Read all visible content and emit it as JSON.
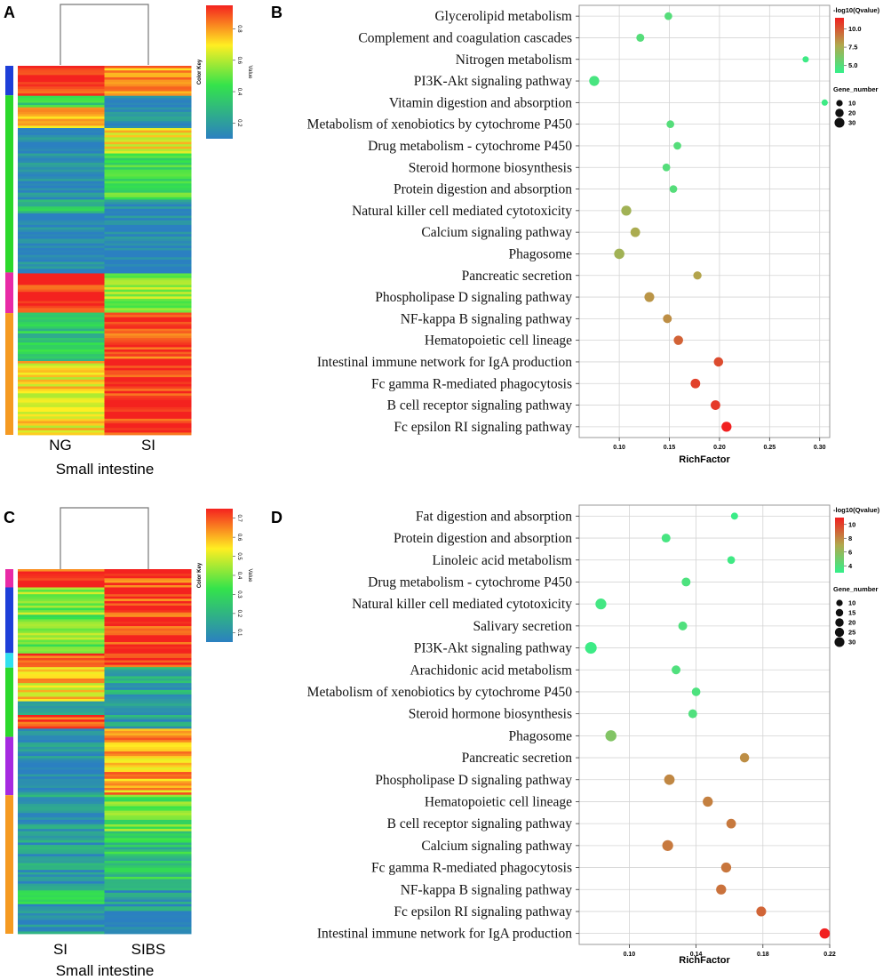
{
  "panel_labels": [
    "A",
    "B",
    "C",
    "D"
  ],
  "colors": {
    "heat_low": "#2b80c1",
    "heat_mid": "#34e34b",
    "heat_yellow": "#ffee22",
    "heat_high": "#f4221f",
    "cluster_blue": "#1e3fd8",
    "cluster_green": "#2bd82b",
    "cluster_magenta": "#e82aa6",
    "cluster_orange": "#f59a22",
    "cluster_cyan": "#31e0ef",
    "cluster_purple": "#a62ae0",
    "dot_low": "#34f08a",
    "dot_high": "#f12020"
  },
  "chart_data": [
    {
      "panel": "A",
      "type": "heatmap",
      "columns": [
        "NG",
        "SI"
      ],
      "xlabel": "Small intestine",
      "color_key": {
        "title": "Color Key",
        "axis_label": "Value",
        "ticks": [
          "0.2",
          "0.4",
          "0.6",
          "0.8"
        ],
        "range": [
          0.1,
          0.95
        ]
      },
      "row_clusters": [
        {
          "color": "cluster_blue",
          "fraction": 0.08
        },
        {
          "color": "cluster_green",
          "fraction": 0.48
        },
        {
          "color": "cluster_magenta",
          "fraction": 0.11
        },
        {
          "color": "cluster_orange",
          "fraction": 0.33
        }
      ],
      "profile": [
        {
          "from": 0.0,
          "to": 0.08,
          "values": [
            0.95,
            0.8
          ]
        },
        {
          "from": 0.08,
          "to": 0.11,
          "values": [
            0.4,
            0.15
          ]
        },
        {
          "from": 0.11,
          "to": 0.17,
          "values": [
            0.75,
            0.15
          ]
        },
        {
          "from": 0.17,
          "to": 0.24,
          "values": [
            0.12,
            0.7
          ]
        },
        {
          "from": 0.24,
          "to": 0.36,
          "values": [
            0.12,
            0.45
          ]
        },
        {
          "from": 0.36,
          "to": 0.4,
          "values": [
            0.35,
            0.12
          ]
        },
        {
          "from": 0.4,
          "to": 0.56,
          "values": [
            0.12,
            0.12
          ]
        },
        {
          "from": 0.56,
          "to": 0.67,
          "values": [
            0.95,
            0.55
          ]
        },
        {
          "from": 0.67,
          "to": 0.8,
          "values": [
            0.35,
            0.9
          ]
        },
        {
          "from": 0.8,
          "to": 1.0,
          "values": [
            0.7,
            0.95
          ]
        }
      ]
    },
    {
      "panel": "B",
      "type": "scatter",
      "xlabel": "RichFactor",
      "xlim": [
        0.06,
        0.31
      ],
      "xticks": [
        0.1,
        0.15,
        0.2,
        0.25,
        0.3
      ],
      "xtick_labels": [
        "0.10",
        "0.15",
        "0.20",
        "0.25",
        "0.30"
      ],
      "color_legend": {
        "title": "-log10(Qvalue)",
        "ticks": [
          5.0,
          7.5,
          10.0
        ],
        "tick_labels": [
          "5.0",
          "7.5",
          "10.0"
        ],
        "range": [
          4.0,
          11.5
        ]
      },
      "size_legend": {
        "title": "Gene_number",
        "values": [
          10,
          20,
          30
        ],
        "labels": [
          "10",
          "20",
          "30"
        ]
      },
      "pathways": [
        "Glycerolipid metabolism",
        "Complement and coagulation cascades",
        "Nitrogen metabolism",
        "PI3K-Akt signaling pathway",
        "Vitamin digestion and absorption",
        "Metabolism of xenobiotics by cytochrome P450",
        "Drug metabolism - cytochrome P450",
        "Steroid hormone biosynthesis",
        "Protein digestion and absorption",
        "Natural killer cell mediated cytotoxicity",
        "Calcium signaling pathway",
        "Phagosome",
        "Pancreatic secretion",
        "Phospholipase D signaling pathway",
        "NF-kappa B signaling pathway",
        "Hematopoietic cell lineage",
        "Intestinal immune network for IgA production",
        "Fc gamma R-mediated phagocytosis",
        "B cell receptor signaling pathway",
        "Fc epsilon RI signaling pathway"
      ],
      "richfactor": [
        0.149,
        0.121,
        0.286,
        0.075,
        0.305,
        0.151,
        0.158,
        0.147,
        0.154,
        0.107,
        0.116,
        0.1,
        0.178,
        0.13,
        0.148,
        0.159,
        0.199,
        0.176,
        0.196,
        0.207
      ],
      "qvalue": [
        5.0,
        5.0,
        4.3,
        4.6,
        4.3,
        5.0,
        5.0,
        5.0,
        5.0,
        7.3,
        7.6,
        7.3,
        7.9,
        8.3,
        8.5,
        9.7,
        10.3,
        10.6,
        10.8,
        11.5
      ],
      "gene_number": [
        9,
        10,
        5,
        18,
        5,
        9,
        9,
        9,
        9,
        18,
        16,
        19,
        11,
        17,
        13,
        15,
        15,
        16,
        16,
        18
      ]
    },
    {
      "panel": "C",
      "type": "heatmap",
      "columns": [
        "SI",
        "SIBS"
      ],
      "xlabel": "Small intestine",
      "color_key": {
        "title": "Color Key",
        "axis_label": "Value",
        "ticks": [
          "0.1",
          "0.2",
          "0.3",
          "0.4",
          "0.5",
          "0.6",
          "0.7"
        ],
        "range": [
          0.05,
          0.75
        ]
      },
      "row_clusters": [
        {
          "color": "cluster_magenta",
          "fraction": 0.05
        },
        {
          "color": "cluster_blue",
          "fraction": 0.18
        },
        {
          "color": "cluster_cyan",
          "fraction": 0.04
        },
        {
          "color": "cluster_green",
          "fraction": 0.19
        },
        {
          "color": "cluster_purple",
          "fraction": 0.16
        },
        {
          "color": "cluster_orange",
          "fraction": 0.38
        }
      ],
      "profile": [
        {
          "from": 0.0,
          "to": 0.05,
          "values": [
            0.72,
            0.72
          ]
        },
        {
          "from": 0.05,
          "to": 0.23,
          "values": [
            0.4,
            0.72
          ]
        },
        {
          "from": 0.23,
          "to": 0.27,
          "values": [
            0.72,
            0.72
          ]
        },
        {
          "from": 0.27,
          "to": 0.36,
          "values": [
            0.55,
            0.15
          ]
        },
        {
          "from": 0.36,
          "to": 0.4,
          "values": [
            0.1,
            0.15
          ]
        },
        {
          "from": 0.4,
          "to": 0.44,
          "values": [
            0.72,
            0.12
          ]
        },
        {
          "from": 0.44,
          "to": 0.62,
          "values": [
            0.12,
            0.62
          ]
        },
        {
          "from": 0.62,
          "to": 0.72,
          "values": [
            0.12,
            0.38
          ]
        },
        {
          "from": 0.72,
          "to": 0.88,
          "values": [
            0.12,
            0.25
          ]
        },
        {
          "from": 0.88,
          "to": 0.92,
          "values": [
            0.3,
            0.12
          ]
        },
        {
          "from": 0.92,
          "to": 1.0,
          "values": [
            0.1,
            0.1
          ]
        }
      ]
    },
    {
      "panel": "D",
      "type": "scatter",
      "xlabel": "RichFactor",
      "xlim": [
        0.07,
        0.22
      ],
      "xticks": [
        0.1,
        0.14,
        0.18,
        0.22
      ],
      "xtick_labels": [
        "0.10",
        "0.14",
        "0.18",
        "0.22"
      ],
      "color_legend": {
        "title": "-log10(Qvalue)",
        "ticks": [
          4,
          6,
          8,
          10
        ],
        "tick_labels": [
          "4",
          "6",
          "8",
          "10"
        ],
        "range": [
          3.0,
          11.0
        ]
      },
      "size_legend": {
        "title": "Gene_number",
        "values": [
          10,
          15,
          20,
          25,
          30
        ],
        "labels": [
          "10",
          "15",
          "20",
          "25",
          "30"
        ]
      },
      "pathways": [
        "Fat digestion and absorption",
        "Protein digestion and absorption",
        "Linoleic acid metabolism",
        "Drug metabolism - cytochrome P450",
        "Natural killer cell mediated cytotoxicity",
        "Salivary secretion",
        "PI3K-Akt signaling pathway",
        "Arachidonic acid metabolism",
        "Metabolism of xenobiotics by cytochrome P450",
        "Steroid hormone biosynthesis",
        "Phagosome",
        "Pancreatic secretion",
        "Phospholipase D signaling pathway",
        "Hematopoietic cell lineage",
        "B cell receptor signaling pathway",
        "Calcium signaling pathway",
        "Fc gamma R-mediated phagocytosis",
        "NF-kappa B signaling pathway",
        "Fc epsilon RI signaling pathway",
        "Intestinal immune network for IgA production"
      ],
      "richfactor": [
        0.163,
        0.122,
        0.161,
        0.134,
        0.083,
        0.132,
        0.077,
        0.128,
        0.14,
        0.138,
        0.089,
        0.169,
        0.124,
        0.147,
        0.161,
        0.123,
        0.158,
        0.155,
        0.179,
        0.217
      ],
      "qvalue": [
        3.2,
        3.6,
        3.4,
        3.8,
        3.5,
        3.9,
        3.3,
        3.9,
        3.8,
        3.9,
        5.5,
        7.8,
        8.0,
        8.2,
        8.4,
        8.4,
        8.5,
        8.6,
        9.0,
        11.0
      ],
      "gene_number": [
        7,
        13,
        9,
        13,
        22,
        13,
        26,
        13,
        12,
        13,
        23,
        15,
        20,
        18,
        16,
        22,
        18,
        18,
        17,
        19
      ]
    }
  ]
}
